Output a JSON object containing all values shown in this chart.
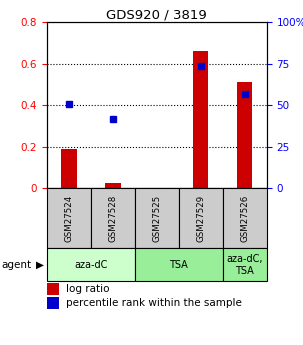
{
  "title": "GDS920 / 3819",
  "samples": [
    "GSM27524",
    "GSM27528",
    "GSM27525",
    "GSM27529",
    "GSM27526"
  ],
  "log_ratio": [
    0.19,
    0.025,
    0.0,
    0.66,
    0.51
  ],
  "percentile_rank": [
    50.5,
    41.5,
    0.0,
    73.5,
    56.5
  ],
  "bar_color": "#cc0000",
  "dot_color": "#0000cc",
  "ylim_left": [
    0.0,
    0.8
  ],
  "ylim_right": [
    0,
    100
  ],
  "yticks_left": [
    0.0,
    0.2,
    0.4,
    0.6,
    0.8
  ],
  "yticks_right": [
    0,
    25,
    50,
    75,
    100
  ],
  "yticklabels_left": [
    "0",
    "0.2",
    "0.4",
    "0.6",
    "0.8"
  ],
  "yticklabels_right": [
    "0",
    "25",
    "50",
    "75",
    "100%"
  ],
  "group_boundaries": [
    {
      "start": 0,
      "end": 2,
      "label": "aza-dC",
      "color": "#ccffcc"
    },
    {
      "start": 2,
      "end": 4,
      "label": "TSA",
      "color": "#99ee99"
    },
    {
      "start": 4,
      "end": 5,
      "label": "aza-dC,\nTSA",
      "color": "#99ee99"
    }
  ],
  "legend_bar_label": "log ratio",
  "legend_dot_label": "percentile rank within the sample",
  "agent_label": "agent",
  "background_color": "#ffffff",
  "sample_box_color": "#cccccc",
  "bar_width": 0.35,
  "dot_size": 5
}
